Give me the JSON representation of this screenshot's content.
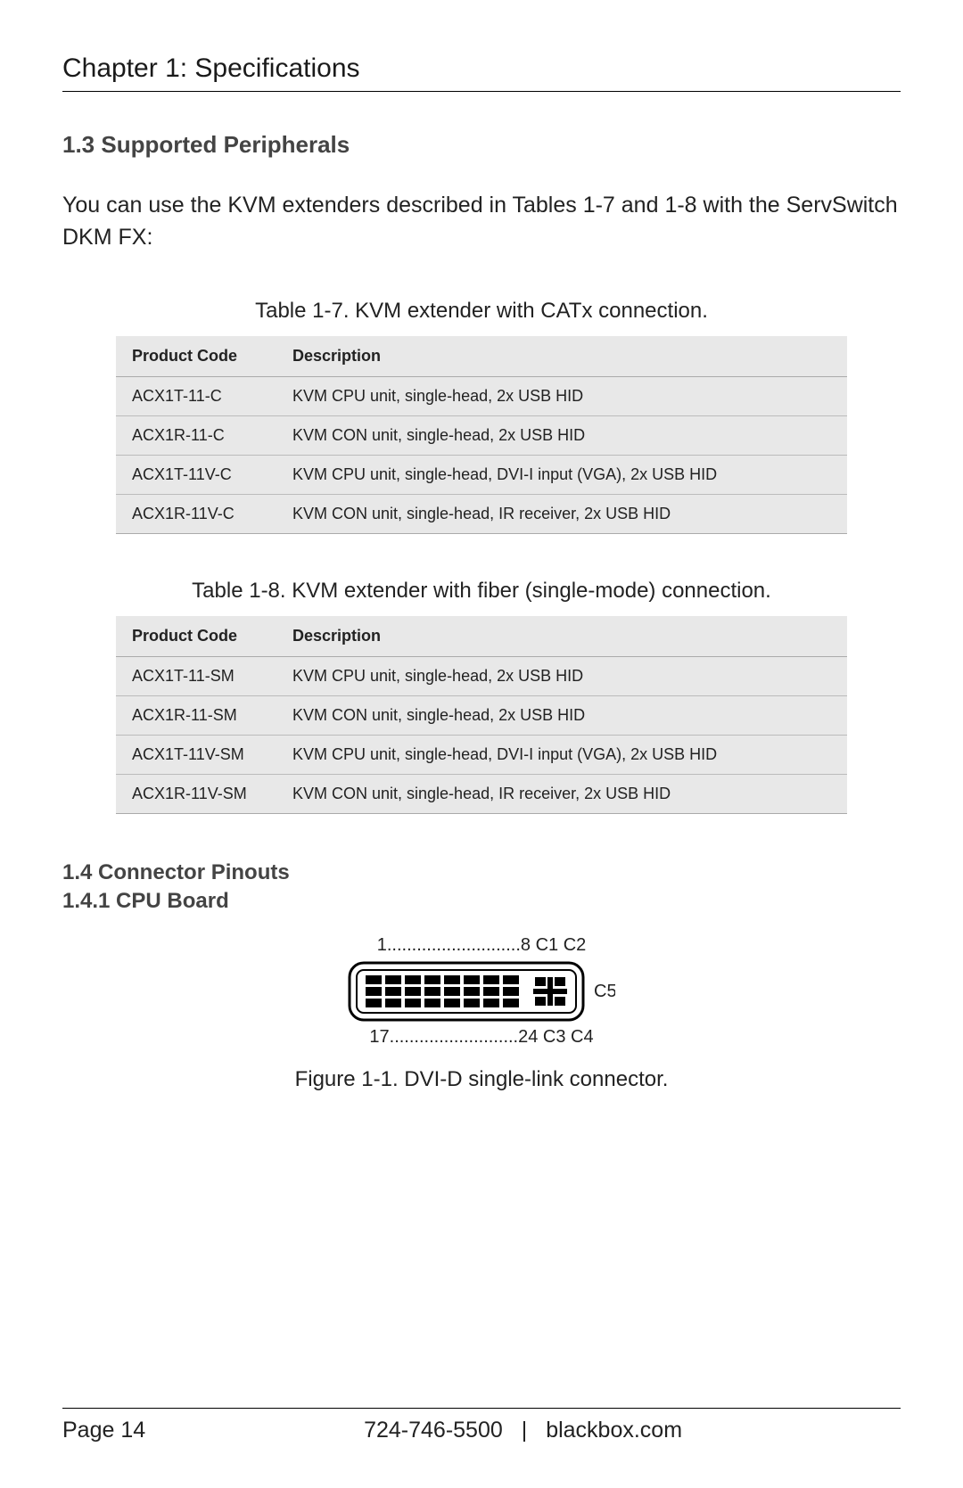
{
  "chapter_title": "Chapter 1: Specifications",
  "section_1_3": {
    "heading": "1.3 Supported Peripherals",
    "intro": "You can use the KVM extenders described in Tables 1-7 and 1-8 with the ServSwitch DKM FX:"
  },
  "table_1_7": {
    "caption": "Table 1-7. KVM extender with CATx connection.",
    "columns": [
      "Product Code",
      "Description"
    ],
    "rows": [
      [
        "ACX1T-11-C",
        "KVM CPU unit, single-head, 2x USB HID"
      ],
      [
        "ACX1R-11-C",
        "KVM CON unit, single-head, 2x USB HID"
      ],
      [
        "ACX1T-11V-C",
        "KVM CPU unit, single-head, DVI-I input (VGA), 2x USB HID"
      ],
      [
        "ACX1R-11V-C",
        "KVM CON unit, single-head, IR receiver, 2x USB HID"
      ]
    ],
    "bg_color": "#e8e8e8",
    "border_color": "#bbbbbb",
    "header_font_weight": 600
  },
  "table_1_8": {
    "caption": "Table 1-8. KVM extender with fiber (single-mode) connection.",
    "columns": [
      "Product Code",
      "Description"
    ],
    "rows": [
      [
        "ACX1T-11-SM",
        "KVM CPU unit, single-head, 2x USB HID"
      ],
      [
        "ACX1R-11-SM",
        "KVM CON unit, single-head, 2x USB HID"
      ],
      [
        "ACX1T-11V-SM",
        "KVM CPU unit, single-head, DVI-I input (VGA), 2x USB HID"
      ],
      [
        "ACX1R-11V-SM",
        "KVM CON unit, single-head, IR receiver, 2x USB HID"
      ]
    ]
  },
  "section_1_4": {
    "heading": "1.4 Connector Pinouts",
    "sub_heading": "1.4.1 CPU Board"
  },
  "figure_1_1": {
    "top_row": "1...........................8   C1   C2",
    "bottom_row": "17..........................24   C3   C4",
    "side_label": "C5",
    "caption": "Figure 1-1. DVI-D single-link connector.",
    "pin_cols_main": 8,
    "pin_rows_main": 3,
    "outline_color": "#000000",
    "pin_fill": "#000000",
    "bg_fill": "#ffffff"
  },
  "footer": {
    "page": "Page 14",
    "phone": "724-746-5500",
    "separator": "|",
    "site": "blackbox.com"
  }
}
